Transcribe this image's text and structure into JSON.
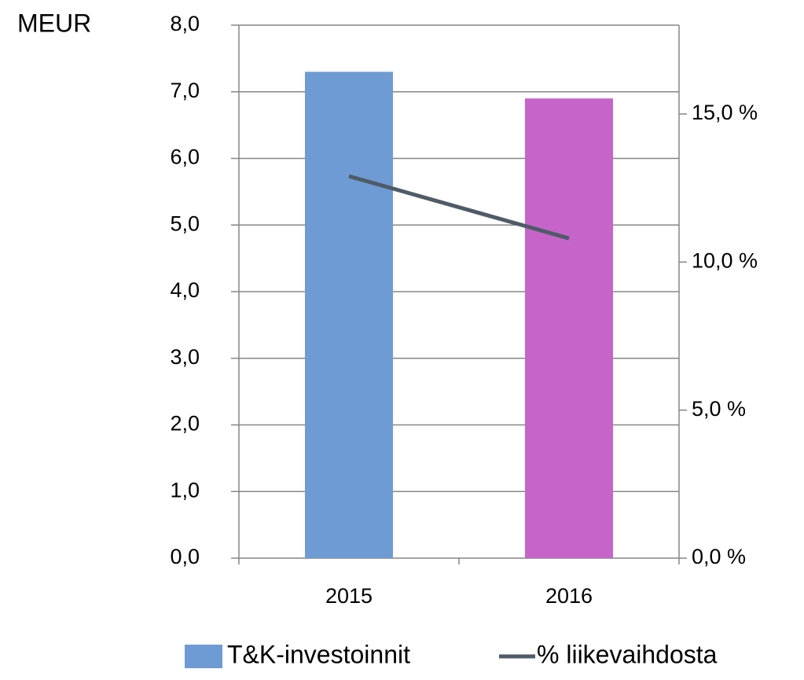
{
  "chart_data": {
    "type": "bar-line",
    "y_label": "MEUR",
    "categories": [
      "2015",
      "2016"
    ],
    "series": [
      {
        "name": "T&K-investoinnit",
        "type": "bar",
        "colors": [
          "#6f9bd4",
          "#c764c9"
        ],
        "values": [
          7.3,
          6.9
        ]
      },
      {
        "name": "% liikevaihdosta",
        "type": "line",
        "axis": "y2",
        "color": "#4f5b66",
        "values": [
          12.9,
          10.8
        ]
      }
    ],
    "ylim": [
      0,
      8
    ],
    "yticks": [
      {
        "value": 0,
        "label": "0,0"
      },
      {
        "value": 1,
        "label": "1,0"
      },
      {
        "value": 2,
        "label": "2,0"
      },
      {
        "value": 3,
        "label": "3,0"
      },
      {
        "value": 4,
        "label": "4,0"
      },
      {
        "value": 5,
        "label": "5,0"
      },
      {
        "value": 6,
        "label": "6,0"
      },
      {
        "value": 7,
        "label": "7,0"
      },
      {
        "value": 8,
        "label": "8,0"
      }
    ],
    "y2lim": [
      0,
      18
    ],
    "y2ticks": [
      {
        "value": 0,
        "label": "0,0 %"
      },
      {
        "value": 5,
        "label": "5,0 %"
      },
      {
        "value": 10,
        "label": "10,0 %"
      },
      {
        "value": 15,
        "label": "15,0 %"
      }
    ],
    "grid": true,
    "legend": "bottom"
  }
}
